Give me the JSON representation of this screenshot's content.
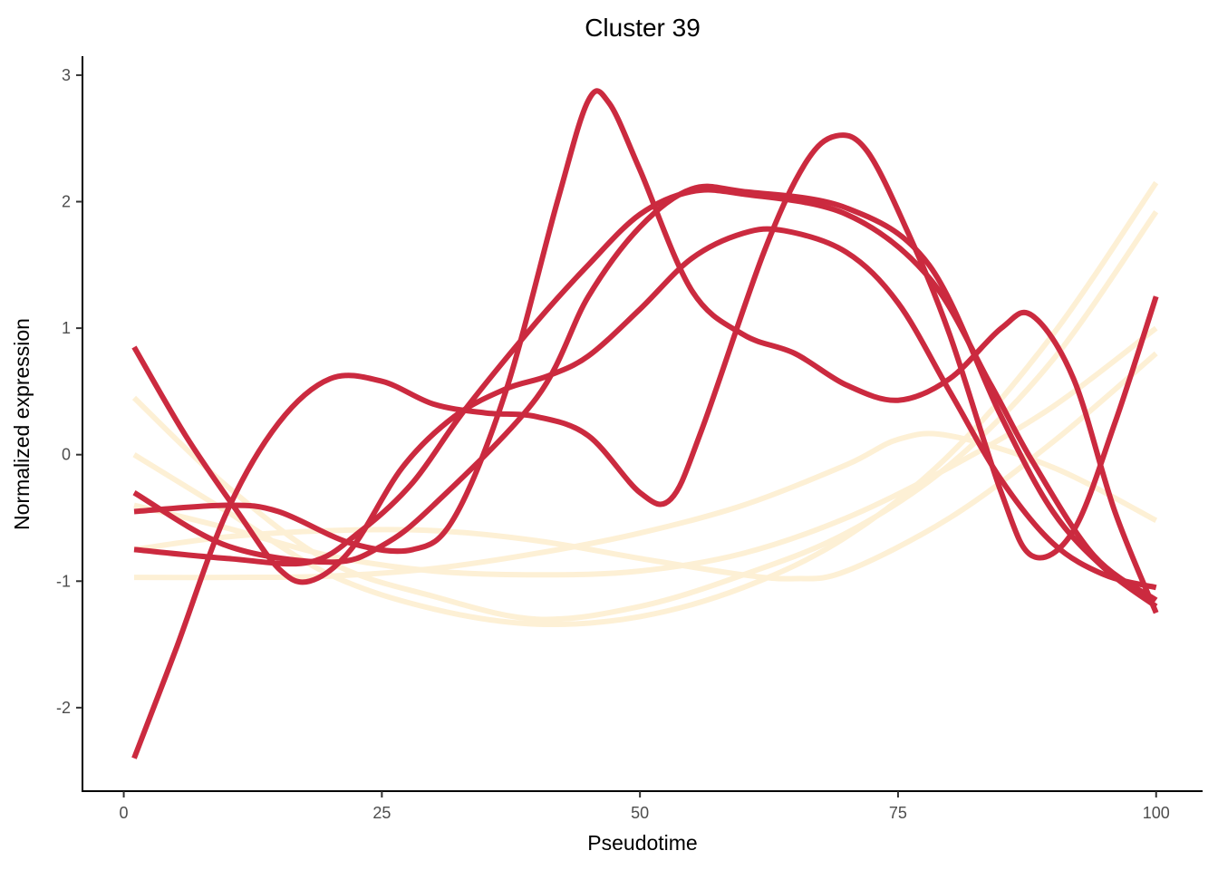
{
  "chart_data": {
    "type": "line",
    "title": "Cluster 39",
    "xlabel": "Pseudotime",
    "ylabel": "Normalized expression",
    "xlim": [
      -4,
      104.5
    ],
    "ylim": [
      -2.66,
      3.15
    ],
    "xticks": [
      0,
      25,
      50,
      75,
      100
    ],
    "xtick_labels": [
      "0",
      "25",
      "50",
      "75",
      "100"
    ],
    "yticks": [
      -2,
      -1,
      0,
      1,
      2,
      3
    ],
    "ytick_labels": [
      "-2",
      "-1",
      "0",
      "1",
      "2",
      "3"
    ],
    "grid": false,
    "legend": "none",
    "colors": {
      "high": "#CB2A3F",
      "low": "#FDF0D5"
    },
    "series": [
      {
        "group": "low",
        "points": [
          [
            1,
            0.45
          ],
          [
            10,
            -0.25
          ],
          [
            20,
            -0.85
          ],
          [
            30,
            -1.12
          ],
          [
            40,
            -1.3
          ],
          [
            50,
            -1.2
          ],
          [
            60,
            -0.95
          ],
          [
            70,
            -0.62
          ],
          [
            80,
            -0.08
          ],
          [
            90,
            0.75
          ],
          [
            100,
            1.92
          ]
        ]
      },
      {
        "group": "low",
        "points": [
          [
            1,
            0.0
          ],
          [
            10,
            -0.45
          ],
          [
            20,
            -0.95
          ],
          [
            30,
            -1.22
          ],
          [
            40,
            -1.34
          ],
          [
            50,
            -1.28
          ],
          [
            60,
            -1.05
          ],
          [
            70,
            -0.65
          ],
          [
            80,
            0.0
          ],
          [
            90,
            0.95
          ],
          [
            100,
            2.15
          ]
        ]
      },
      {
        "group": "low",
        "points": [
          [
            1,
            -0.4
          ],
          [
            10,
            -0.58
          ],
          [
            20,
            -0.8
          ],
          [
            30,
            -0.92
          ],
          [
            40,
            -0.95
          ],
          [
            50,
            -0.92
          ],
          [
            60,
            -0.78
          ],
          [
            70,
            -0.5
          ],
          [
            80,
            -0.1
          ],
          [
            90,
            0.38
          ],
          [
            100,
            1.0
          ]
        ]
      },
      {
        "group": "low",
        "points": [
          [
            1,
            -0.75
          ],
          [
            10,
            -0.65
          ],
          [
            20,
            -0.6
          ],
          [
            30,
            -0.6
          ],
          [
            40,
            -0.68
          ],
          [
            50,
            -0.82
          ],
          [
            60,
            -0.95
          ],
          [
            65,
            -0.98
          ],
          [
            70,
            -0.92
          ],
          [
            80,
            -0.5
          ],
          [
            90,
            0.1
          ],
          [
            100,
            0.8
          ]
        ]
      },
      {
        "group": "low",
        "points": [
          [
            1,
            -0.97
          ],
          [
            10,
            -0.97
          ],
          [
            20,
            -0.96
          ],
          [
            30,
            -0.9
          ],
          [
            40,
            -0.78
          ],
          [
            50,
            -0.62
          ],
          [
            60,
            -0.4
          ],
          [
            70,
            -0.08
          ],
          [
            75,
            0.12
          ],
          [
            80,
            0.15
          ],
          [
            90,
            -0.1
          ],
          [
            100,
            -0.52
          ]
        ]
      },
      {
        "group": "high",
        "points": [
          [
            1,
            -2.4
          ],
          [
            5,
            -1.55
          ],
          [
            10,
            -0.45
          ],
          [
            15,
            0.25
          ],
          [
            20,
            0.6
          ],
          [
            25,
            0.58
          ],
          [
            30,
            0.4
          ],
          [
            35,
            0.33
          ],
          [
            40,
            0.3
          ],
          [
            45,
            0.15
          ],
          [
            50,
            -0.3
          ],
          [
            53,
            -0.35
          ],
          [
            56,
            0.2
          ],
          [
            62,
            1.6
          ],
          [
            66,
            2.3
          ],
          [
            69,
            2.52
          ],
          [
            72,
            2.4
          ],
          [
            76,
            1.75
          ],
          [
            80,
            0.95
          ],
          [
            85,
            -0.3
          ],
          [
            88,
            -0.8
          ],
          [
            92,
            -0.6
          ],
          [
            96,
            0.25
          ],
          [
            100,
            1.25
          ]
        ]
      },
      {
        "group": "high",
        "points": [
          [
            1,
            0.85
          ],
          [
            6,
            0.15
          ],
          [
            11,
            -0.45
          ],
          [
            15,
            -0.9
          ],
          [
            18,
            -1.0
          ],
          [
            22,
            -0.75
          ],
          [
            27,
            -0.1
          ],
          [
            32,
            0.3
          ],
          [
            37,
            0.52
          ],
          [
            41,
            0.62
          ],
          [
            45,
            0.78
          ],
          [
            50,
            1.15
          ],
          [
            55,
            1.55
          ],
          [
            60,
            1.75
          ],
          [
            64,
            1.77
          ],
          [
            70,
            1.6
          ],
          [
            75,
            1.2
          ],
          [
            80,
            0.5
          ],
          [
            85,
            -0.2
          ],
          [
            90,
            -0.7
          ],
          [
            95,
            -0.95
          ],
          [
            100,
            -1.05
          ]
        ]
      },
      {
        "group": "high",
        "points": [
          [
            1,
            -0.3
          ],
          [
            10,
            -0.72
          ],
          [
            20,
            -0.85
          ],
          [
            25,
            -0.72
          ],
          [
            30,
            -0.4
          ],
          [
            40,
            0.45
          ],
          [
            45,
            1.25
          ],
          [
            50,
            1.8
          ],
          [
            55,
            2.1
          ],
          [
            60,
            2.08
          ],
          [
            70,
            1.95
          ],
          [
            78,
            1.5
          ],
          [
            85,
            0.3
          ],
          [
            90,
            -0.45
          ],
          [
            95,
            -0.9
          ],
          [
            100,
            -1.2
          ]
        ]
      },
      {
        "group": "high",
        "points": [
          [
            1,
            -0.75
          ],
          [
            10,
            -0.82
          ],
          [
            18,
            -0.85
          ],
          [
            23,
            -0.6
          ],
          [
            28,
            -0.22
          ],
          [
            33,
            0.35
          ],
          [
            40,
            1.05
          ],
          [
            45,
            1.5
          ],
          [
            50,
            1.9
          ],
          [
            55,
            2.08
          ],
          [
            60,
            2.06
          ],
          [
            70,
            1.9
          ],
          [
            78,
            1.4
          ],
          [
            84,
            0.55
          ],
          [
            88,
            -0.05
          ],
          [
            94,
            -0.8
          ],
          [
            100,
            -1.15
          ]
        ]
      },
      {
        "group": "high",
        "points": [
          [
            1,
            -0.45
          ],
          [
            10,
            -0.4
          ],
          [
            15,
            -0.45
          ],
          [
            22,
            -0.7
          ],
          [
            28,
            -0.75
          ],
          [
            32,
            -0.5
          ],
          [
            37,
            0.5
          ],
          [
            42,
            2.0
          ],
          [
            45,
            2.8
          ],
          [
            47,
            2.78
          ],
          [
            50,
            2.25
          ],
          [
            55,
            1.3
          ],
          [
            60,
            0.95
          ],
          [
            65,
            0.8
          ],
          [
            70,
            0.55
          ],
          [
            75,
            0.43
          ],
          [
            80,
            0.6
          ],
          [
            85,
            1.0
          ],
          [
            88,
            1.1
          ],
          [
            92,
            0.6
          ],
          [
            96,
            -0.45
          ],
          [
            100,
            -1.25
          ]
        ]
      }
    ]
  }
}
